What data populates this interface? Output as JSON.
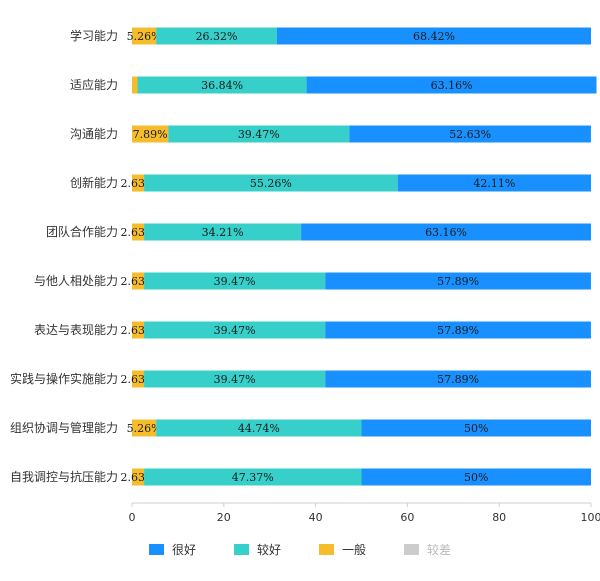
{
  "chart_data": {
    "type": "bar",
    "orientation": "horizontal",
    "stacked": true,
    "categories": [
      "学习能力",
      "适应能力",
      "沟通能力",
      "创新能力",
      "团队合作能力",
      "与他人相处能力",
      "表达与表现能力",
      "实践与操作实施能力",
      "组织协调与管理能力",
      "自我调控与抗压能力"
    ],
    "series": [
      {
        "name": "一般",
        "color": "#f5bd2c",
        "values": [
          5.26,
          1.2,
          7.89,
          2.63,
          2.63,
          2.63,
          2.63,
          2.63,
          5.26,
          2.63
        ],
        "labels": [
          "5.26%",
          "",
          "7.89%",
          "2.63%",
          "2.63%",
          "2.63%",
          "2.63%",
          "2.63%",
          "5.26%",
          "2.63%"
        ]
      },
      {
        "name": "较好",
        "color": "#36cfc9",
        "values": [
          26.32,
          36.84,
          39.47,
          55.26,
          34.21,
          39.47,
          39.47,
          39.47,
          44.74,
          47.37
        ],
        "labels": [
          "26.32%",
          "36.84%",
          "39.47%",
          "55.26%",
          "34.21%",
          "39.47%",
          "39.47%",
          "39.47%",
          "44.74%",
          "47.37%"
        ]
      },
      {
        "name": "很好",
        "color": "#1890ff",
        "values": [
          68.42,
          63.16,
          52.63,
          42.11,
          63.16,
          57.89,
          57.89,
          57.89,
          50,
          50
        ],
        "labels": [
          "68.42%",
          "63.16%",
          "52.63%",
          "42.11%",
          "63.16%",
          "57.89%",
          "57.89%",
          "57.89%",
          "50%",
          "50%"
        ]
      }
    ],
    "xlim": [
      0,
      100
    ],
    "xticks": [
      "0",
      "20",
      "40",
      "60",
      "80",
      "100"
    ],
    "legend": [
      {
        "name": "很好",
        "color": "#1890ff",
        "active": true
      },
      {
        "name": "较好",
        "color": "#36cfc9",
        "active": true
      },
      {
        "name": "一般",
        "color": "#f5bd2c",
        "active": true
      },
      {
        "name": "较差",
        "color": "#cccccc",
        "active": false
      }
    ],
    "legend_position": "bottom",
    "grid": false
  }
}
